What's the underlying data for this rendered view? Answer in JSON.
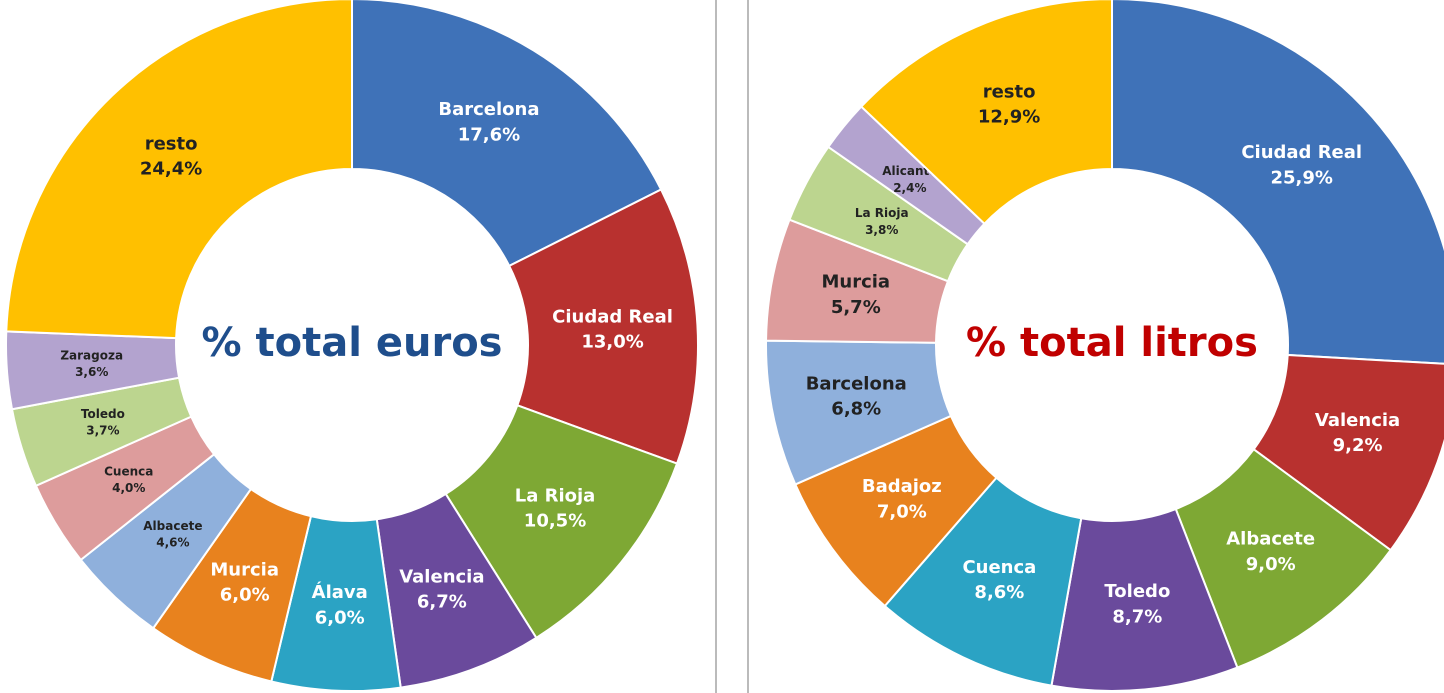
{
  "chart_data": [
    {
      "type": "donut",
      "title": "% total euros",
      "title_color": "#1f4e8c",
      "categories": [
        "Barcelona",
        "Ciudad Real",
        "La Rioja",
        "Valencia",
        "Álava",
        "Murcia",
        "Albacete",
        "Cuenca",
        "Toledo",
        "Zaragoza",
        "resto"
      ],
      "values": [
        17.6,
        13.0,
        10.5,
        6.7,
        6.0,
        6.0,
        4.6,
        4.0,
        3.7,
        3.6,
        24.4
      ],
      "value_labels": [
        "17,6%",
        "13,0%",
        "10,5%",
        "6,7%",
        "6,0%",
        "6,0%",
        "4,6%",
        "4,0%",
        "3,7%",
        "3,6%",
        "24,4%"
      ],
      "colors": [
        "#3f72b8",
        "#b8312f",
        "#7ea834",
        "#6a4a9c",
        "#2ba3c4",
        "#e8821e",
        "#8fb0dc",
        "#dd9c9c",
        "#bcd58f",
        "#b3a3cf",
        "#ffc000"
      ]
    },
    {
      "type": "donut",
      "title": "% total litros",
      "title_color": "#c00000",
      "categories": [
        "Ciudad Real",
        "Valencia",
        "Albacete",
        "Toledo",
        "Cuenca",
        "Badajoz",
        "Barcelona",
        "Murcia",
        "La Rioja",
        "Alicante",
        "resto"
      ],
      "values": [
        25.9,
        9.2,
        9.0,
        8.7,
        8.6,
        7.0,
        6.8,
        5.7,
        3.8,
        2.4,
        12.9
      ],
      "value_labels": [
        "25,9%",
        "9,2%",
        "9,0%",
        "8,7%",
        "8,6%",
        "7,0%",
        "6,8%",
        "5,7%",
        "3,8%",
        "2,4%",
        "12,9%"
      ],
      "colors": [
        "#3f72b8",
        "#b8312f",
        "#7ea834",
        "#6a4a9c",
        "#2ba3c4",
        "#e8821e",
        "#8fb0dc",
        "#dd9c9c",
        "#bcd58f",
        "#b3a3cf",
        "#ffc000"
      ]
    }
  ]
}
